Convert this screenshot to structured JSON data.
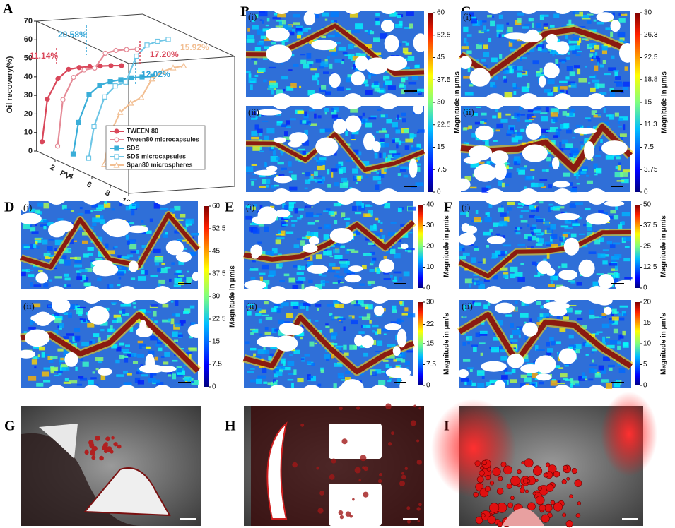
{
  "chart_data": {
    "type": "line",
    "label": "A",
    "y_label": "Oil recovery(%)",
    "x_label": "PV",
    "xlim": [
      0,
      10
    ],
    "xticks": [
      2,
      4,
      6,
      8,
      10
    ],
    "ylim": [
      0,
      70
    ],
    "yticks": [
      0,
      10,
      20,
      30,
      40,
      50,
      60,
      70
    ],
    "series": [
      {
        "name": "TWEEN 80",
        "color": "#d9475a",
        "marker": "circle",
        "x": [
          0.5,
          1,
          2,
          3,
          4,
          5,
          6,
          7,
          8
        ],
        "values": [
          5,
          28,
          39,
          44,
          45,
          45.5,
          45.8,
          46,
          46
        ]
      },
      {
        "name": "Tween80 microcapsules",
        "color": "#e58a96",
        "marker": "circle-open",
        "x": [
          0.5,
          1,
          2,
          3,
          4,
          5,
          6,
          7,
          8
        ],
        "values": [
          5,
          30,
          42,
          46,
          47,
          55,
          56.5,
          57,
          57.2
        ]
      },
      {
        "name": "SDS",
        "color": "#3aaed8",
        "marker": "square",
        "x": [
          0.5,
          1,
          2,
          3,
          4,
          5,
          6,
          7,
          8
        ],
        "values": [
          3,
          20,
          35,
          40,
          42,
          43,
          44,
          44.5,
          44.8
        ]
      },
      {
        "name": "SDS microcapsules",
        "color": "#6ec6e6",
        "marker": "square-open",
        "x": [
          0.5,
          1,
          2,
          3,
          4,
          5,
          6,
          7,
          8
        ],
        "values": [
          3,
          20,
          36,
          42,
          44,
          58,
          64,
          66,
          67
        ]
      },
      {
        "name": "Span80 microspheres",
        "color": "#f2bf93",
        "marker": "triangle-open",
        "x": [
          0.5,
          1,
          2,
          3,
          4,
          5,
          6,
          7,
          8
        ],
        "values": [
          2,
          18,
          30,
          35,
          38,
          48,
          52,
          54,
          55
        ]
      }
    ],
    "annotations": [
      {
        "text": "20.58%",
        "color": "#2ea3d6"
      },
      {
        "text": "11.14%",
        "color": "#d9475a"
      },
      {
        "text": "17.20%",
        "color": "#d9475a"
      },
      {
        "text": "15.92%",
        "color": "#f2bf93"
      },
      {
        "text": "12.02%",
        "color": "#2ea3d6"
      }
    ]
  },
  "panels": [
    {
      "label": "B",
      "sub_labels": [
        "(i)",
        "(ii)"
      ],
      "colorbars": [
        {
          "title": "Magnitude in μm/s",
          "ticks": [
            0,
            7.5,
            15,
            22.5,
            30,
            37.5,
            45,
            52.5,
            60
          ]
        }
      ]
    },
    {
      "label": "C",
      "sub_labels": [
        "(i)",
        "(ii)"
      ],
      "colorbars": [
        {
          "title": "Magnitude in μm/s",
          "ticks": [
            0,
            3.75,
            7.5,
            11.3,
            15,
            18.8,
            22.5,
            26.3,
            30
          ]
        }
      ]
    },
    {
      "label": "D",
      "sub_labels": [
        "(i)",
        "(ii)"
      ],
      "colorbars": [
        {
          "title": "Magnitude in μm/s",
          "ticks": [
            0,
            7.5,
            15,
            22.5,
            30,
            37.5,
            45,
            52.5,
            60
          ]
        }
      ]
    },
    {
      "label": "E",
      "sub_labels": [
        "(i)",
        "(ii)"
      ],
      "colorbars": [
        {
          "title": "Magnitude in μm/s",
          "ticks": [
            0,
            10,
            20,
            30,
            40
          ]
        },
        {
          "title": "Magnitude in μm/s",
          "ticks": [
            0,
            7.5,
            15,
            22,
            30
          ]
        }
      ]
    },
    {
      "label": "F",
      "sub_labels": [
        "(i)",
        "(ii)"
      ],
      "colorbars": [
        {
          "title": "Magnitude in μm/s",
          "ticks": [
            0,
            12.5,
            25,
            37.5,
            50
          ]
        },
        {
          "title": "Magnitude in μm/s",
          "ticks": [
            0,
            5,
            10,
            15,
            20
          ]
        }
      ]
    },
    {
      "label": "G"
    },
    {
      "label": "H"
    },
    {
      "label": "I"
    }
  ]
}
